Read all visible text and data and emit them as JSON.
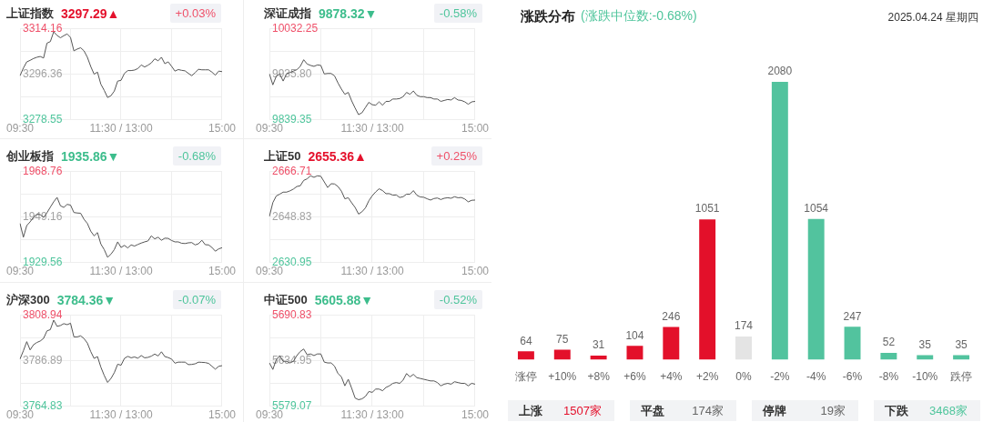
{
  "chart_data": [
    {
      "type": "line",
      "title": "上证指数",
      "subtitle": "3297.29▲",
      "annotations": [
        "+0.03%"
      ],
      "color": "#555555",
      "grid": true,
      "categories": [
        "09:30",
        null,
        null,
        null,
        null,
        null,
        null,
        null,
        null,
        null,
        null,
        null,
        null,
        null,
        null,
        null,
        null,
        null,
        null,
        null,
        null,
        null,
        null,
        null,
        null,
        null,
        null,
        null,
        null,
        null,
        "11:30 / 13:00",
        null,
        null,
        null,
        null,
        null,
        null,
        null,
        null,
        null,
        null,
        null,
        null,
        null,
        null,
        null,
        null,
        null,
        null,
        null,
        null,
        null,
        null,
        null,
        null,
        null,
        null,
        null,
        null,
        null,
        "15:00"
      ],
      "values": [
        3295.7,
        3298.7,
        3301.1,
        3301.7,
        3302.4,
        3302.9,
        3303.2,
        3302.6,
        3308.4,
        3309.0,
        3312.8,
        3311.4,
        3310.5,
        3311.3,
        3312.0,
        3310.6,
        3305.4,
        3306.1,
        3306.6,
        3305.4,
        3302.9,
        3299.3,
        3296.3,
        3297.1,
        3292.4,
        3290.0,
        3287.2,
        3287.9,
        3289.7,
        3293.6,
        3293.9,
        3296.6,
        3297.7,
        3297.7,
        3297.9,
        3298.5,
        3299.9,
        3299.1,
        3299.8,
        3300.7,
        3302.3,
        3301.5,
        3302.9,
        3300.4,
        3301.1,
        3299.4,
        3297.5,
        3298.1,
        3297.8,
        3297.6,
        3296.6,
        3295.7,
        3296.9,
        3298.2,
        3298.0,
        3298.0,
        3298.0,
        3297.1,
        3295.9,
        3297.5,
        3297.3
      ],
      "ylim": [
        3278.55,
        3314.16
      ],
      "yticks": [
        3278.55,
        {
          "value": 3287.46,
          "label": null
        },
        3296.36,
        {
          "value": 3305.26,
          "label": null
        },
        3314.16
      ]
    },
    {
      "type": "line",
      "title": "深证成指",
      "subtitle": "9878.32▼",
      "annotations": [
        "-0.58%"
      ],
      "color": "#555555",
      "grid": true,
      "categories": [
        "09:30",
        null,
        null,
        null,
        null,
        null,
        null,
        null,
        null,
        null,
        null,
        null,
        null,
        null,
        null,
        null,
        null,
        null,
        null,
        null,
        null,
        null,
        null,
        null,
        null,
        null,
        null,
        null,
        null,
        null,
        "11:30 / 13:00",
        null,
        null,
        null,
        null,
        null,
        null,
        null,
        null,
        null,
        null,
        null,
        null,
        null,
        null,
        null,
        null,
        null,
        null,
        null,
        null,
        null,
        null,
        null,
        null,
        null,
        null,
        null,
        null,
        null,
        "15:00"
      ],
      "values": [
        9936,
        9913,
        9931,
        9936,
        9921,
        9936,
        9939,
        9942,
        9945,
        9952,
        9966,
        9957,
        9954,
        9952,
        9955,
        9954,
        9936,
        9937,
        9937,
        9932,
        9917,
        9904,
        9893,
        9897,
        9879,
        9864,
        9850,
        9854,
        9865,
        9876,
        9871,
        9870,
        9877,
        9870,
        9878,
        9878,
        9883,
        9883,
        9884,
        9888,
        9897,
        9893,
        9900,
        9891,
        9888,
        9888,
        9886,
        9886,
        9883,
        9883,
        9878,
        9880,
        9882,
        9881,
        9886,
        9881,
        9880,
        9877,
        9872,
        9877,
        9878
      ],
      "ylim": [
        9839.35,
        10032.25
      ],
      "yticks": [
        9839.35,
        {
          "value": 9887.58,
          "label": null
        },
        {
          "value": 9935.8,
          "label": "9935.80"
        },
        {
          "value": 9984.03,
          "label": null
        },
        10032.25
      ]
    },
    {
      "type": "line",
      "title": "创业板指",
      "subtitle": "1935.86▼",
      "annotations": [
        "-0.68%"
      ],
      "color": "#555555",
      "grid": true,
      "categories": [
        "09:30",
        null,
        null,
        null,
        null,
        null,
        null,
        null,
        null,
        null,
        null,
        null,
        null,
        null,
        null,
        null,
        null,
        null,
        null,
        null,
        null,
        null,
        null,
        null,
        null,
        null,
        null,
        null,
        null,
        null,
        "11:30 / 13:00",
        null,
        null,
        null,
        null,
        null,
        null,
        null,
        null,
        null,
        null,
        null,
        null,
        null,
        null,
        null,
        null,
        null,
        null,
        null,
        null,
        null,
        null,
        null,
        null,
        null,
        null,
        null,
        null,
        null,
        "15:00"
      ],
      "values": [
        1946.3,
        1940.4,
        1945.4,
        1947.0,
        1949.0,
        1950.3,
        1950.1,
        1948.9,
        1950.9,
        1953.3,
        1955.6,
        1957.5,
        1953.9,
        1953.2,
        1954.5,
        1954.2,
        1951.0,
        1950.8,
        1950.7,
        1948.1,
        1946.3,
        1943.0,
        1941.0,
        1942.4,
        1937.5,
        1935.1,
        1931.8,
        1933.1,
        1935.1,
        1938.4,
        1936.0,
        1936.9,
        1935.8,
        1937.1,
        1936.6,
        1937.3,
        1937.9,
        1938.4,
        1938.8,
        1941.0,
        1939.7,
        1940.4,
        1939.1,
        1940.0,
        1939.9,
        1939.0,
        1938.4,
        1938.4,
        1937.8,
        1937.7,
        1938.0,
        1938.1,
        1937.1,
        1937.6,
        1939.1,
        1937.2,
        1937.1,
        1936.0,
        1934.4,
        1935.4,
        1935.9
      ],
      "ylim": [
        1929.56,
        1968.76
      ],
      "yticks": [
        1929.56,
        {
          "value": 1939.36,
          "label": null
        },
        1949.16,
        {
          "value": 1958.96,
          "label": null
        },
        1968.76
      ]
    },
    {
      "type": "line",
      "title": "上证50",
      "subtitle": "2655.36▲",
      "annotations": [
        "+0.25%"
      ],
      "color": "#555555",
      "grid": true,
      "categories": [
        "09:30",
        null,
        null,
        null,
        null,
        null,
        null,
        null,
        null,
        null,
        null,
        null,
        null,
        null,
        null,
        null,
        null,
        null,
        null,
        null,
        null,
        null,
        null,
        null,
        null,
        null,
        null,
        null,
        null,
        null,
        "11:30 / 13:00",
        null,
        null,
        null,
        null,
        null,
        null,
        null,
        null,
        null,
        null,
        null,
        null,
        null,
        null,
        null,
        null,
        null,
        null,
        null,
        null,
        null,
        null,
        null,
        null,
        null,
        null,
        null,
        null,
        null,
        "15:00"
      ],
      "values": [
        2649.0,
        2654.4,
        2657.0,
        2657.7,
        2658.5,
        2658.5,
        2659.0,
        2659.7,
        2660.7,
        2661.0,
        2663.1,
        2663.7,
        2664.9,
        2664.3,
        2664.9,
        2664.7,
        2662.5,
        2660.3,
        2661.8,
        2661.7,
        2660.7,
        2658.9,
        2655.9,
        2656.3,
        2654.3,
        2652.5,
        2649.9,
        2650.8,
        2652.3,
        2655.1,
        2657.1,
        2658.6,
        2659.8,
        2659.1,
        2657.9,
        2657.9,
        2657.3,
        2657.4,
        2656.4,
        2656.7,
        2657.7,
        2657.7,
        2659.1,
        2657.3,
        2656.6,
        2656.5,
        2655.9,
        2655.4,
        2656.0,
        2656.2,
        2655.6,
        2656.1,
        2656.3,
        2656.1,
        2656.7,
        2656.3,
        2656.4,
        2655.8,
        2654.7,
        2655.3,
        2655.4
      ],
      "ylim": [
        2630.95,
        2666.71
      ],
      "yticks": [
        2630.95,
        {
          "value": 2639.89,
          "label": null
        },
        2648.83,
        {
          "value": 2657.77,
          "label": null
        },
        2666.71
      ]
    },
    {
      "type": "line",
      "title": "沪深300",
      "subtitle": "3784.36▼",
      "annotations": [
        "-0.07%"
      ],
      "color": "#555555",
      "grid": true,
      "categories": [
        "09:30",
        null,
        null,
        null,
        null,
        null,
        null,
        null,
        null,
        null,
        null,
        null,
        null,
        null,
        null,
        null,
        null,
        null,
        null,
        null,
        null,
        null,
        null,
        null,
        null,
        null,
        null,
        null,
        null,
        null,
        "11:30 / 13:00",
        null,
        null,
        null,
        null,
        null,
        null,
        null,
        null,
        null,
        null,
        null,
        null,
        null,
        null,
        null,
        null,
        null,
        null,
        null,
        null,
        null,
        null,
        null,
        null,
        null,
        null,
        null,
        null,
        null,
        "15:00"
      ],
      "values": [
        3787.6,
        3791.6,
        3796.0,
        3792.0,
        3794.5,
        3795.6,
        3796.3,
        3797.6,
        3801.2,
        3801.8,
        3806.4,
        3803.4,
        3803.8,
        3804.7,
        3804.2,
        3804.9,
        3798.3,
        3798.3,
        3798.8,
        3797.5,
        3795.3,
        3791.2,
        3787.9,
        3788.8,
        3783.7,
        3779.7,
        3776.3,
        3778.2,
        3781.0,
        3785.1,
        3784.6,
        3787.9,
        3788.9,
        3788.2,
        3788.6,
        3788.0,
        3789.3,
        3788.2,
        3788.4,
        3789.0,
        3790.0,
        3789.1,
        3791.1,
        3788.8,
        3788.3,
        3787.6,
        3785.6,
        3786.1,
        3786.1,
        3786.1,
        3784.9,
        3785.0,
        3785.3,
        3786.1,
        3786.0,
        3785.9,
        3785.5,
        3784.1,
        3782.7,
        3784.1,
        3784.4
      ],
      "ylim": [
        3764.83,
        3808.94
      ],
      "yticks": [
        3764.83,
        {
          "value": 3775.86,
          "label": null
        },
        3786.89,
        {
          "value": 3797.92,
          "label": null
        },
        3808.94
      ]
    },
    {
      "type": "line",
      "title": "中证500",
      "subtitle": "5605.88▼",
      "annotations": [
        "-0.52%"
      ],
      "color": "#555555",
      "grid": true,
      "categories": [
        "09:30",
        null,
        null,
        null,
        null,
        null,
        null,
        null,
        null,
        null,
        null,
        null,
        null,
        null,
        null,
        null,
        null,
        null,
        null,
        null,
        null,
        null,
        null,
        null,
        null,
        null,
        null,
        null,
        null,
        null,
        "11:30 / 13:00",
        null,
        null,
        null,
        null,
        null,
        null,
        null,
        null,
        null,
        null,
        null,
        null,
        null,
        null,
        null,
        null,
        null,
        null,
        null,
        null,
        null,
        null,
        null,
        null,
        null,
        null,
        null,
        null,
        null,
        "15:00"
      ],
      "values": [
        5632,
        5624,
        5636,
        5641,
        5634,
        5634,
        5632,
        5634,
        5641,
        5646,
        5649,
        5642,
        5643,
        5641,
        5643,
        5643,
        5633,
        5632,
        5632,
        5628,
        5619,
        5615,
        5604,
        5612,
        5601,
        5589,
        5587,
        5588,
        5591,
        5597,
        5596,
        5600,
        5600,
        5598,
        5602,
        5604,
        5607,
        5608,
        5607,
        5611,
        5619,
        5615,
        5618,
        5614,
        5613,
        5612,
        5611,
        5610,
        5610,
        5608,
        5604,
        5606,
        5607,
        5606,
        5609,
        5608,
        5607,
        5607,
        5604,
        5607,
        5606
      ],
      "ylim": [
        5579.07,
        5690.83
      ],
      "yticks": [
        5579.07,
        {
          "value": 5607.01,
          "label": null
        },
        5634.95,
        {
          "value": 5662.89,
          "label": null
        },
        5690.83
      ]
    },
    {
      "type": "bar",
      "title": "涨跌分布",
      "subtitle": "(涨跌中位数:-0.68%)",
      "annotations": [
        "2025.04.24 星期四",
        "上涨",
        "1507家",
        "平盘",
        "174家",
        "停牌",
        "19家",
        "下跌",
        "3468家"
      ],
      "categories": [
        "涨停",
        "+10%",
        "+8%",
        "+6%",
        "+4%",
        "+2%",
        "0%",
        "-2%",
        "-4%",
        "-6%",
        "-8%",
        "-10%",
        "跌停"
      ],
      "values": [
        64,
        75,
        31,
        104,
        246,
        1051,
        174,
        2080,
        1054,
        247,
        52,
        35,
        35
      ],
      "colors": [
        "#e3102a",
        "#e3102a",
        "#e3102a",
        "#e3102a",
        "#e3102a",
        "#e3102a",
        "#e4e4e4",
        "#52c39e",
        "#52c39e",
        "#52c39e",
        "#52c39e",
        "#52c39e",
        "#52c39e"
      ],
      "data_labels": true,
      "tick_labels": "x"
    }
  ]
}
